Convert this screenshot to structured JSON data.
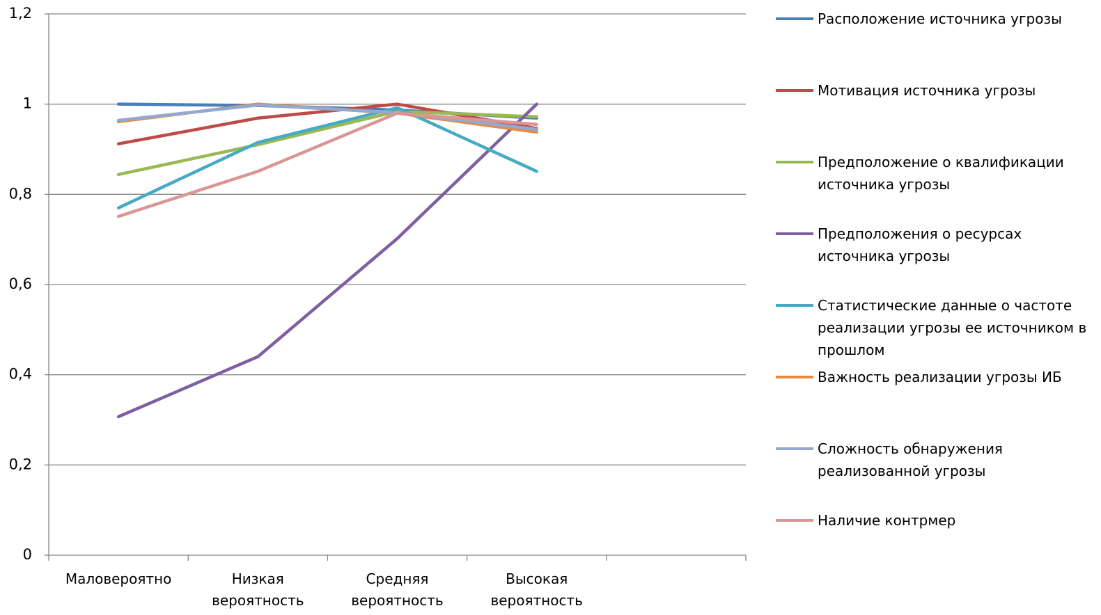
{
  "chart_data": {
    "type": "line",
    "categories": [
      "Маловероятно",
      "Низкая вероятность",
      "Средняя вероятность",
      "Высокая вероятность",
      null
    ],
    "series": [
      {
        "name": "Расположение источника угрозы",
        "color": "#4a7ebb",
        "values": [
          1.0,
          0.997,
          0.987,
          0.969,
          null
        ]
      },
      {
        "name": "Мотивация источника угрозы",
        "color": "#be4b48",
        "values": [
          0.912,
          0.969,
          1.0,
          0.946,
          null
        ]
      },
      {
        "name": "Предположение о квалификации источника угрозы",
        "color": "#98b954",
        "values": [
          0.844,
          0.91,
          0.984,
          0.972,
          null
        ]
      },
      {
        "name": "Предположения о ресурсах источника угрозы",
        "color": "#7d60a0",
        "values": [
          0.307,
          0.44,
          0.702,
          1.0,
          null
        ]
      },
      {
        "name": "Статистические данные о частоте реализации угрозы ее источником в прошлом",
        "color": "#46aac5",
        "values": [
          0.77,
          0.915,
          0.992,
          0.851,
          null
        ]
      },
      {
        "name": "Важность реализации угрозы ИБ",
        "color": "#e8893e",
        "values": [
          0.961,
          1.0,
          0.98,
          0.938,
          null
        ]
      },
      {
        "name": "Сложность обнаружения реализованной угрозы",
        "color": "#93a9d0",
        "values": [
          0.964,
          0.998,
          0.981,
          0.944,
          null
        ]
      },
      {
        "name": "Наличие контрмер",
        "color": "#d99694",
        "values": [
          0.751,
          0.851,
          0.98,
          0.955,
          null
        ]
      }
    ],
    "ylim": [
      0,
      1.2
    ],
    "yticks": [
      0,
      {
        "value": 0.2,
        "label": "0,2"
      },
      {
        "value": 0.4,
        "label": "0,4"
      },
      {
        "value": 0.6,
        "label": "0,6"
      },
      {
        "value": 0.8,
        "label": "0,8"
      },
      1,
      {
        "value": 1.2,
        "label": "1,2"
      }
    ],
    "grid": true,
    "legend": "right"
  }
}
